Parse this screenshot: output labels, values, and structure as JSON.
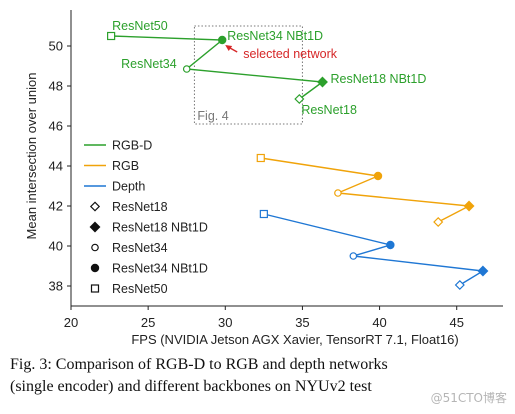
{
  "chart_data": {
    "type": "scatter",
    "xlabel": "FPS (NVIDIA Jetson AGX Xavier, TensorRT 7.1, Float16)",
    "ylabel": "Mean intersection over union",
    "xlim": [
      20,
      48
    ],
    "ylim": [
      37,
      51.8
    ],
    "xticks": [
      "20",
      "25",
      "30",
      "35",
      "40",
      "45"
    ],
    "yticks": [
      "38",
      "40",
      "42",
      "44",
      "46",
      "48",
      "50"
    ],
    "series": [
      {
        "name": "RGB-D",
        "color": "#2ca02c",
        "points": [
          {
            "backbone": "ResNet50",
            "x": 22.6,
            "y": 50.5
          },
          {
            "backbone": "ResNet34 NBt1D",
            "x": 29.8,
            "y": 50.3
          },
          {
            "backbone": "ResNet34",
            "x": 27.5,
            "y": 48.85
          },
          {
            "backbone": "ResNet18 NBt1D",
            "x": 36.3,
            "y": 48.2
          },
          {
            "backbone": "ResNet18",
            "x": 34.8,
            "y": 47.35
          }
        ]
      },
      {
        "name": "RGB",
        "color": "#f0a30a",
        "points": [
          {
            "backbone": "ResNet50",
            "x": 32.3,
            "y": 44.4
          },
          {
            "backbone": "ResNet34 NBt1D",
            "x": 39.9,
            "y": 43.5
          },
          {
            "backbone": "ResNet34",
            "x": 37.3,
            "y": 42.65
          },
          {
            "backbone": "ResNet18 NBt1D",
            "x": 45.8,
            "y": 42.0
          },
          {
            "backbone": "ResNet18",
            "x": 43.8,
            "y": 41.2
          }
        ]
      },
      {
        "name": "Depth",
        "color": "#1f77d4",
        "points": [
          {
            "backbone": "ResNet50",
            "x": 32.5,
            "y": 41.6
          },
          {
            "backbone": "ResNet34 NBt1D",
            "x": 40.7,
            "y": 40.05
          },
          {
            "backbone": "ResNet34",
            "x": 38.3,
            "y": 39.5
          },
          {
            "backbone": "ResNet18 NBt1D",
            "x": 46.7,
            "y": 38.75
          },
          {
            "backbone": "ResNet18",
            "x": 45.2,
            "y": 38.05
          }
        ]
      }
    ],
    "annotations": {
      "point_labels": [
        {
          "text": "ResNet50",
          "x": 22.6,
          "y": 50.5
        },
        {
          "text": "ResNet34 NBt1D",
          "x": 29.8,
          "y": 50.3
        },
        {
          "text": "ResNet34",
          "x": 27.5,
          "y": 48.85
        },
        {
          "text": "ResNet18 NBt1D",
          "x": 36.3,
          "y": 48.2
        },
        {
          "text": "ResNet18",
          "x": 34.8,
          "y": 47.35
        }
      ],
      "selected_label": "selected network",
      "fig4_label": "Fig. 4",
      "fig4_box": {
        "x0": 28.0,
        "x1": 35.0,
        "y0": 46.1,
        "y1": 51.0
      }
    },
    "legend": {
      "placement": "left",
      "entries": [
        {
          "label": "RGB-D",
          "kind": "line",
          "color": "#2ca02c"
        },
        {
          "label": "RGB",
          "kind": "line",
          "color": "#f0a30a"
        },
        {
          "label": "Depth",
          "kind": "line",
          "color": "#1f77d4"
        },
        {
          "label": "ResNet18",
          "kind": "diamond-open"
        },
        {
          "label": "ResNet18 NBt1D",
          "kind": "diamond-filled"
        },
        {
          "label": "ResNet34",
          "kind": "circle-open"
        },
        {
          "label": "ResNet34 NBt1D",
          "kind": "circle-filled"
        },
        {
          "label": "ResNet50",
          "kind": "square-open"
        }
      ]
    },
    "grid": false
  },
  "annotation_color": "#d62728",
  "caption_line1": "Fig. 3: Comparison of RGB-D to RGB and depth networks",
  "caption_line2": "(single encoder) and different backbones on NYUv2 test",
  "watermark": "@51CTO博客"
}
